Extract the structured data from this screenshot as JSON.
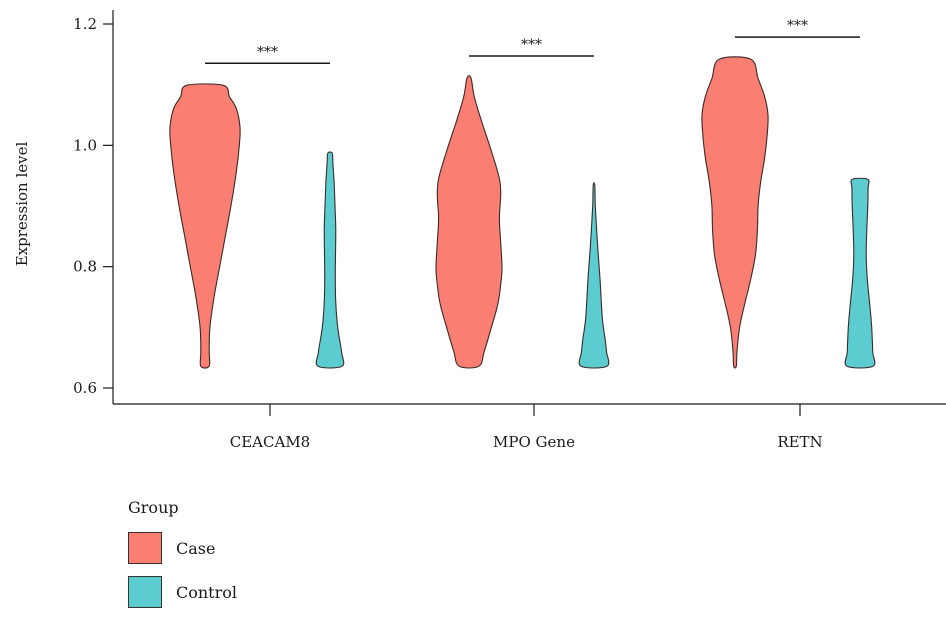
{
  "chart_data": {
    "type": "violin",
    "ylabel": "Expression level",
    "ylim": [
      0.58,
      1.22
    ],
    "yticks": [
      0.6,
      0.8,
      1.0,
      1.2
    ],
    "ytick_labels": [
      "0.6",
      "0.8",
      "1.0",
      "1.2"
    ],
    "categories": [
      "CEACAM8",
      "MPO Gene",
      "RETN"
    ],
    "significance": [
      "***",
      "***",
      "***"
    ],
    "legend_title": "Group",
    "series": [
      {
        "name": "Case",
        "color": "#FA7F72",
        "violins": [
          {
            "min": 0.636,
            "max": 1.099,
            "profile": [
              [
                0.636,
                0.12
              ],
              [
                0.66,
                0.12
              ],
              [
                0.7,
                0.14
              ],
              [
                0.75,
                0.26
              ],
              [
                0.8,
                0.42
              ],
              [
                0.85,
                0.58
              ],
              [
                0.9,
                0.74
              ],
              [
                0.95,
                0.88
              ],
              [
                1.0,
                0.98
              ],
              [
                1.03,
                1.0
              ],
              [
                1.06,
                0.9
              ],
              [
                1.08,
                0.7
              ],
              [
                1.099,
                0.52
              ]
            ]
          },
          {
            "min": 0.636,
            "max": 1.111,
            "profile": [
              [
                0.636,
                0.3
              ],
              [
                0.66,
                0.46
              ],
              [
                0.7,
                0.68
              ],
              [
                0.74,
                0.88
              ],
              [
                0.78,
                0.98
              ],
              [
                0.8,
                1.0
              ],
              [
                0.84,
                0.96
              ],
              [
                0.88,
                0.92
              ],
              [
                0.92,
                0.96
              ],
              [
                0.95,
                0.9
              ],
              [
                1.0,
                0.62
              ],
              [
                1.04,
                0.38
              ],
              [
                1.08,
                0.16
              ],
              [
                1.111,
                0.06
              ]
            ]
          },
          {
            "min": 0.636,
            "max": 1.142,
            "profile": [
              [
                0.636,
                0.04
              ],
              [
                0.66,
                0.06
              ],
              [
                0.7,
                0.14
              ],
              [
                0.74,
                0.3
              ],
              [
                0.78,
                0.48
              ],
              [
                0.82,
                0.62
              ],
              [
                0.86,
                0.68
              ],
              [
                0.9,
                0.7
              ],
              [
                0.94,
                0.78
              ],
              [
                0.98,
                0.9
              ],
              [
                1.02,
                0.98
              ],
              [
                1.05,
                1.0
              ],
              [
                1.08,
                0.9
              ],
              [
                1.11,
                0.7
              ],
              [
                1.142,
                0.48
              ]
            ]
          }
        ]
      },
      {
        "name": "Control",
        "color": "#5BCCCF",
        "violins": [
          {
            "min": 0.636,
            "max": 0.987,
            "profile": [
              [
                0.636,
                1.0
              ],
              [
                0.66,
                0.96
              ],
              [
                0.7,
                0.64
              ],
              [
                0.74,
                0.48
              ],
              [
                0.78,
                0.44
              ],
              [
                0.82,
                0.46
              ],
              [
                0.86,
                0.48
              ],
              [
                0.9,
                0.42
              ],
              [
                0.94,
                0.34
              ],
              [
                0.97,
                0.24
              ],
              [
                0.987,
                0.18
              ]
            ]
          },
          {
            "min": 0.636,
            "max": 0.934,
            "profile": [
              [
                0.636,
                1.0
              ],
              [
                0.66,
                0.96
              ],
              [
                0.68,
                0.86
              ],
              [
                0.7,
                0.72
              ],
              [
                0.72,
                0.62
              ],
              [
                0.75,
                0.54
              ],
              [
                0.78,
                0.46
              ],
              [
                0.81,
                0.36
              ],
              [
                0.84,
                0.26
              ],
              [
                0.87,
                0.18
              ],
              [
                0.9,
                0.1
              ],
              [
                0.934,
                0.06
              ]
            ]
          },
          {
            "min": 0.636,
            "max": 0.944,
            "profile": [
              [
                0.636,
                1.0
              ],
              [
                0.66,
                0.98
              ],
              [
                0.7,
                0.9
              ],
              [
                0.74,
                0.74
              ],
              [
                0.78,
                0.56
              ],
              [
                0.82,
                0.48
              ],
              [
                0.86,
                0.52
              ],
              [
                0.9,
                0.6
              ],
              [
                0.93,
                0.62
              ],
              [
                0.944,
                0.6
              ]
            ]
          }
        ]
      }
    ]
  }
}
